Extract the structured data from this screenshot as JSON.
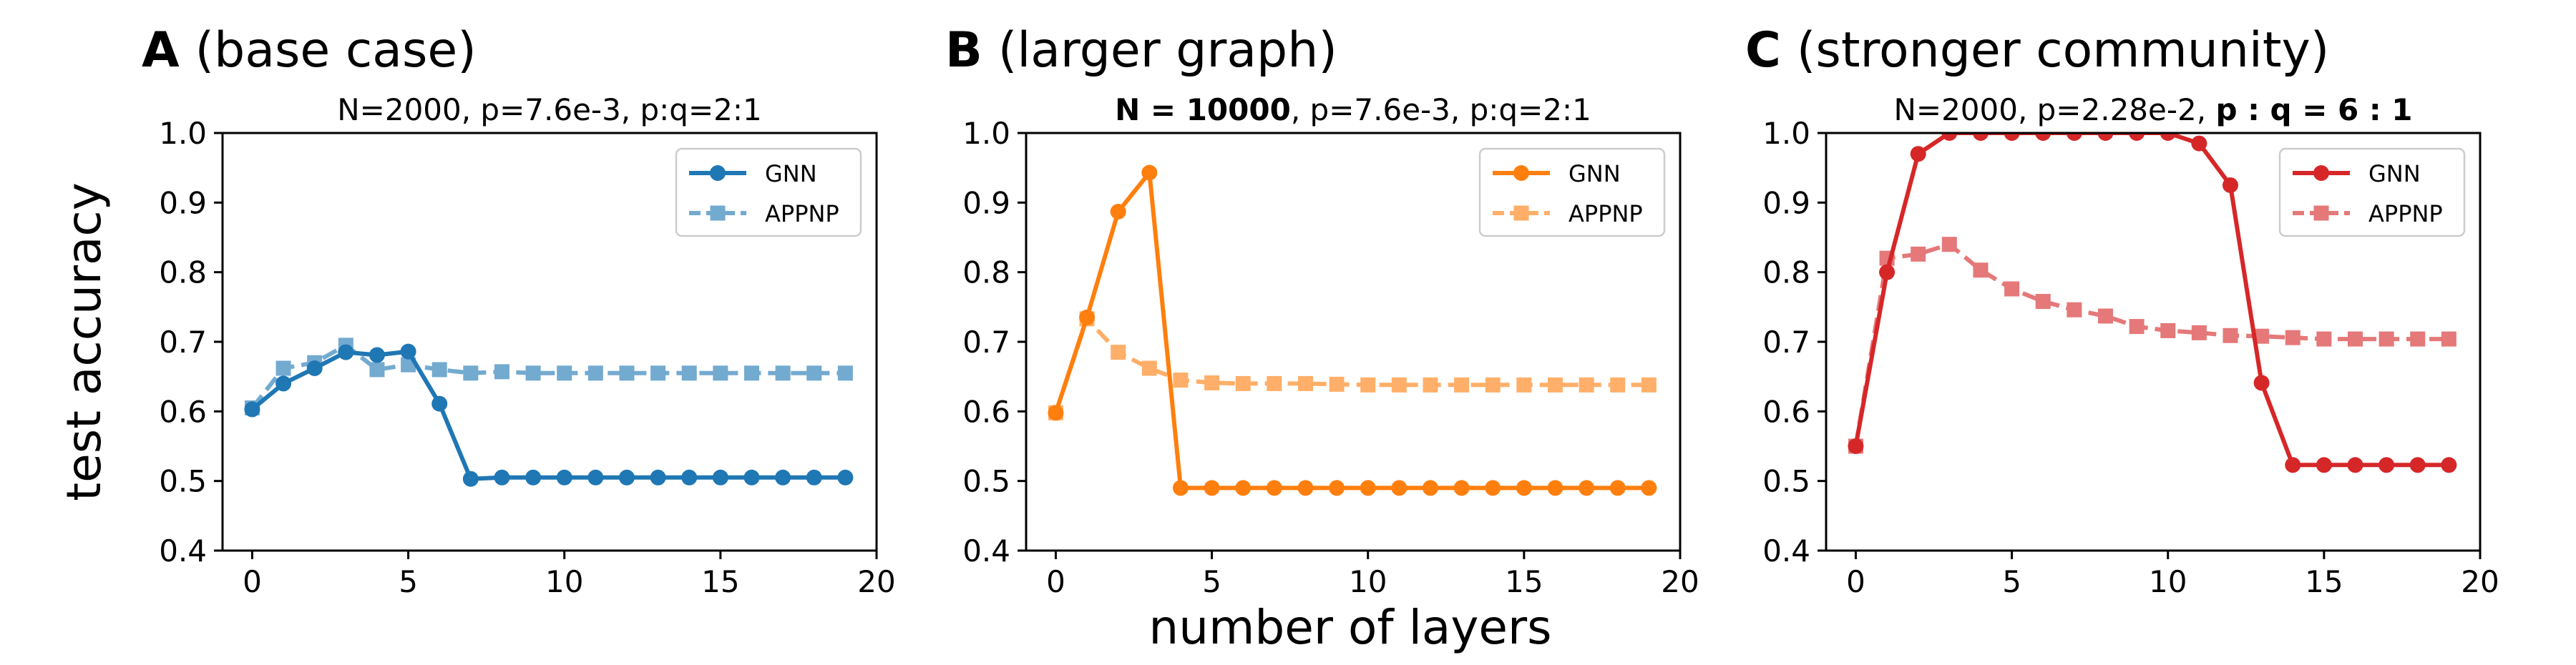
{
  "figure": {
    "ylabel": "test accuracy",
    "xlabel": "number of layers"
  },
  "chart_data": [
    {
      "type": "line",
      "panel_letter": "A",
      "panel_title": "(base case)",
      "subtitle_parts": [
        {
          "text": "N=2000, p=7.6e-3, p:q=2:1",
          "bold": false
        }
      ],
      "xlim": [
        -0.95,
        20
      ],
      "ylim": [
        0.4,
        1.0
      ],
      "xticks": [
        0,
        5,
        10,
        15,
        20
      ],
      "yticks": [
        0.4,
        0.5,
        0.6,
        0.7,
        0.8,
        0.9,
        1.0
      ],
      "ytick_labels": [
        "0.4",
        "0.5",
        "0.6",
        "0.7",
        "0.8",
        "0.9",
        "1.0"
      ],
      "legend_position": "top-right",
      "x": [
        0,
        1,
        2,
        3,
        4,
        5,
        6,
        7,
        8,
        9,
        10,
        11,
        12,
        13,
        14,
        15,
        16,
        17,
        18,
        19
      ],
      "series": [
        {
          "name": "GNN",
          "marker": "circle",
          "dashed": false,
          "color": "#1f77b4",
          "values": [
            0.603,
            0.64,
            0.662,
            0.685,
            0.681,
            0.686,
            0.611,
            0.503,
            0.505,
            0.505,
            0.505,
            0.505,
            0.505,
            0.505,
            0.505,
            0.505,
            0.505,
            0.505,
            0.505,
            0.505
          ]
        },
        {
          "name": "APPNP",
          "marker": "square",
          "dashed": true,
          "color": "#1f77b4",
          "values": [
            0.605,
            0.662,
            0.67,
            0.695,
            0.66,
            0.667,
            0.66,
            0.655,
            0.657,
            0.655,
            0.655,
            0.655,
            0.655,
            0.655,
            0.655,
            0.655,
            0.655,
            0.655,
            0.655,
            0.655
          ]
        }
      ]
    },
    {
      "type": "line",
      "panel_letter": "B",
      "panel_title": "(larger graph)",
      "subtitle_parts": [
        {
          "text": "N = 10000",
          "bold": true
        },
        {
          "text": ", p=7.6e-3, p:q=2:1",
          "bold": false
        }
      ],
      "xlim": [
        -0.95,
        20
      ],
      "ylim": [
        0.4,
        1.0
      ],
      "xticks": [
        0,
        5,
        10,
        15,
        20
      ],
      "yticks": [
        0.4,
        0.5,
        0.6,
        0.7,
        0.8,
        0.9,
        1.0
      ],
      "ytick_labels": [
        "0.4",
        "0.5",
        "0.6",
        "0.7",
        "0.8",
        "0.9",
        "1.0"
      ],
      "legend_position": "top-right",
      "x": [
        0,
        1,
        2,
        3,
        4,
        5,
        6,
        7,
        8,
        9,
        10,
        11,
        12,
        13,
        14,
        15,
        16,
        17,
        18,
        19
      ],
      "series": [
        {
          "name": "GNN",
          "marker": "circle",
          "dashed": false,
          "color": "#ff7f0e",
          "values": [
            0.598,
            0.735,
            0.887,
            0.943,
            0.49,
            0.49,
            0.49,
            0.49,
            0.49,
            0.49,
            0.49,
            0.49,
            0.49,
            0.49,
            0.49,
            0.49,
            0.49,
            0.49,
            0.49,
            0.49
          ]
        },
        {
          "name": "APPNP",
          "marker": "square",
          "dashed": true,
          "color": "#ff7f0e",
          "values": [
            0.598,
            0.733,
            0.685,
            0.662,
            0.645,
            0.641,
            0.64,
            0.64,
            0.64,
            0.639,
            0.638,
            0.638,
            0.638,
            0.638,
            0.638,
            0.638,
            0.638,
            0.638,
            0.638,
            0.638
          ]
        }
      ]
    },
    {
      "type": "line",
      "panel_letter": "C",
      "panel_title": "(stronger community)",
      "subtitle_parts": [
        {
          "text": "N=2000, p=2.28e-2, ",
          "bold": false
        },
        {
          "text": "p : q = 6 : 1",
          "bold": true
        }
      ],
      "xlim": [
        -0.95,
        20
      ],
      "ylim": [
        0.4,
        1.0
      ],
      "xticks": [
        0,
        5,
        10,
        15,
        20
      ],
      "yticks": [
        0.4,
        0.5,
        0.6,
        0.7,
        0.8,
        0.9,
        1.0
      ],
      "ytick_labels": [
        "0.4",
        "0.5",
        "0.6",
        "0.7",
        "0.8",
        "0.9",
        "1.0"
      ],
      "legend_position": "top-right",
      "x": [
        0,
        1,
        2,
        3,
        4,
        5,
        6,
        7,
        8,
        9,
        10,
        11,
        12,
        13,
        14,
        15,
        16,
        17,
        18,
        19
      ],
      "series": [
        {
          "name": "GNN",
          "marker": "circle",
          "dashed": false,
          "color": "#d62728",
          "values": [
            0.55,
            0.8,
            0.97,
            1.0,
            1.0,
            1.0,
            1.0,
            1.0,
            1.0,
            1.0,
            1.0,
            0.985,
            0.925,
            0.641,
            0.523,
            0.523,
            0.523,
            0.523,
            0.523,
            0.523
          ]
        },
        {
          "name": "APPNP",
          "marker": "square",
          "dashed": true,
          "color": "#d62728",
          "values": [
            0.55,
            0.82,
            0.826,
            0.84,
            0.803,
            0.776,
            0.758,
            0.746,
            0.737,
            0.722,
            0.716,
            0.713,
            0.709,
            0.708,
            0.706,
            0.704,
            0.704,
            0.704,
            0.704,
            0.704
          ]
        }
      ]
    }
  ]
}
